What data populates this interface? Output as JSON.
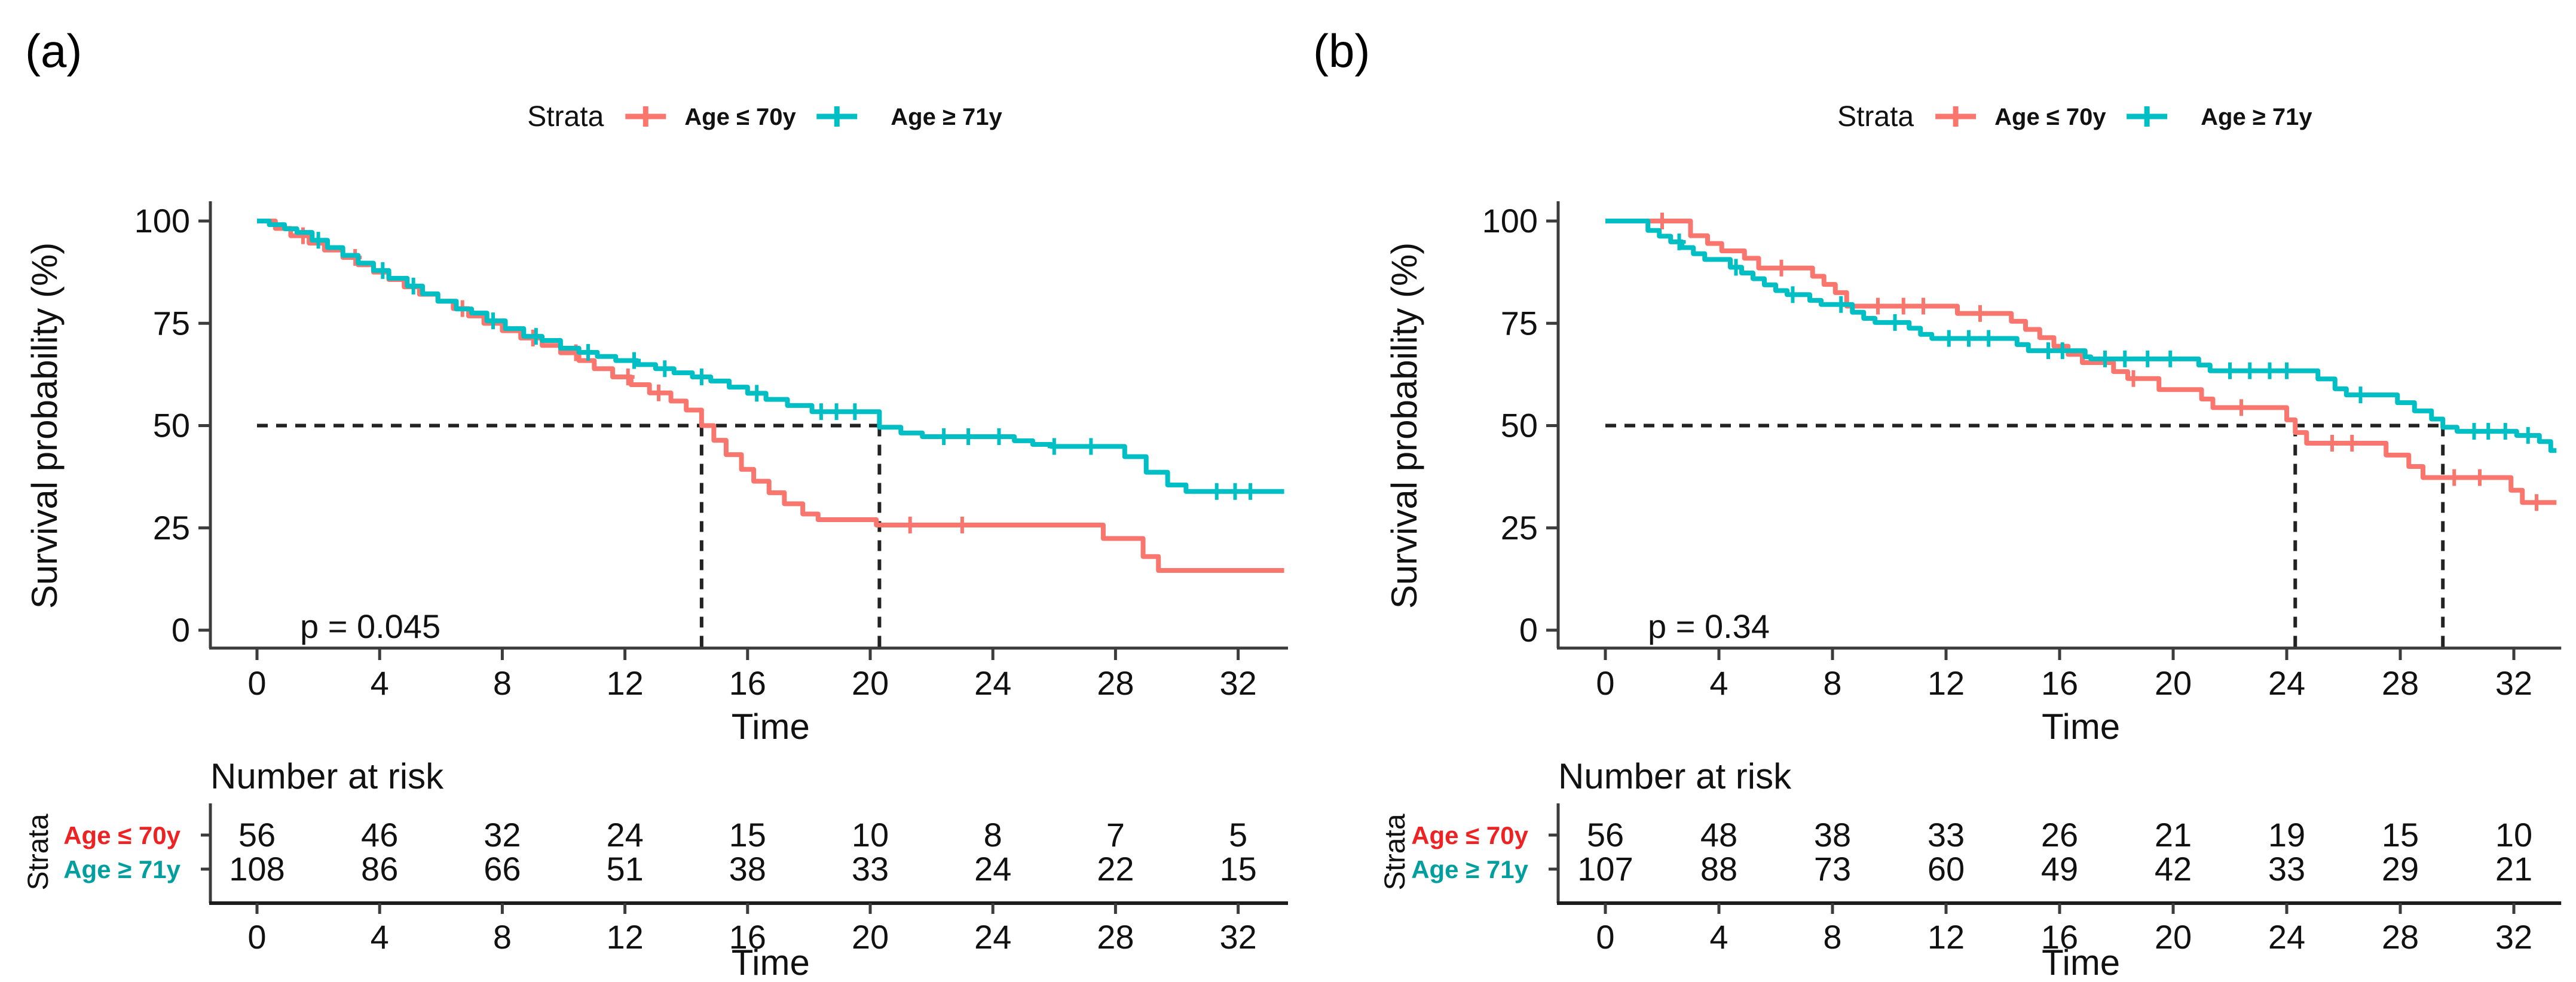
{
  "chart_data": [
    {
      "panel_label": "(a)",
      "type": "line",
      "subtype": "kaplan_meier_step",
      "xlabel": "Time",
      "ylabel": "Survival probability (%)",
      "xlim": [
        0,
        33.5
      ],
      "ylim": [
        0,
        100
      ],
      "xticks": [
        0,
        4,
        8,
        12,
        16,
        20,
        24,
        28,
        32
      ],
      "yticks": [
        100,
        75,
        50,
        25,
        0
      ],
      "grid": false,
      "legend": {
        "title": "Strata",
        "position": "top"
      },
      "p_value_label": "p = 0.045",
      "median_survival": {
        "y_percent": 50,
        "times": [
          14.5,
          20.3
        ]
      },
      "series": [
        {
          "name": "Age ≤ 70y",
          "color": "#F8766D",
          "steps": [
            [
              0,
              100
            ],
            [
              0.6,
              98.2
            ],
            [
              1.1,
              96.4
            ],
            [
              1.7,
              94.6
            ],
            [
              2.2,
              92.9
            ],
            [
              2.8,
              91.1
            ],
            [
              3.3,
              89.3
            ],
            [
              3.8,
              87.5
            ],
            [
              4.3,
              85.7
            ],
            [
              4.8,
              83.9
            ],
            [
              5.3,
              82.1
            ],
            [
              5.9,
              80.4
            ],
            [
              6.4,
              78.6
            ],
            [
              6.9,
              76.8
            ],
            [
              7.4,
              75.0
            ],
            [
              8.0,
              73.2
            ],
            [
              8.6,
              71.4
            ],
            [
              9.3,
              69.6
            ],
            [
              9.9,
              67.8
            ],
            [
              10.5,
              65.9
            ],
            [
              11.0,
              63.9
            ],
            [
              11.6,
              61.9
            ],
            [
              12.2,
              60.0
            ],
            [
              12.8,
              58.0
            ],
            [
              13.5,
              56.0
            ],
            [
              14.0,
              53.8
            ],
            [
              14.5,
              50.0
            ],
            [
              14.9,
              46.4
            ],
            [
              15.3,
              42.9
            ],
            [
              15.8,
              39.3
            ],
            [
              16.2,
              36.4
            ],
            [
              16.7,
              33.6
            ],
            [
              17.2,
              30.9
            ],
            [
              17.8,
              28.4
            ],
            [
              18.3,
              27.0
            ],
            [
              20.2,
              25.7
            ],
            [
              27.6,
              22.4
            ],
            [
              28.9,
              18.0
            ],
            [
              29.4,
              14.6
            ],
            [
              33.5,
              14.6
            ]
          ],
          "censor_times": [
            1.5,
            3.2,
            6.7,
            9.0,
            10.4,
            12.1,
            13.1,
            21.3,
            23.0
          ]
        },
        {
          "name": "Age ≥ 71y",
          "color": "#00BFC4",
          "steps": [
            [
              0,
              100
            ],
            [
              0.4,
              99.1
            ],
            [
              0.9,
              98.1
            ],
            [
              1.3,
              97.2
            ],
            [
              1.8,
              95.3
            ],
            [
              2.3,
              93.5
            ],
            [
              2.8,
              91.6
            ],
            [
              3.3,
              89.7
            ],
            [
              3.8,
              87.9
            ],
            [
              4.3,
              86.0
            ],
            [
              4.9,
              84.1
            ],
            [
              5.4,
              82.2
            ],
            [
              5.9,
              80.4
            ],
            [
              6.5,
              78.5
            ],
            [
              7.0,
              77.5
            ],
            [
              7.5,
              75.6
            ],
            [
              8.1,
              73.7
            ],
            [
              8.7,
              71.8
            ],
            [
              9.3,
              70.8
            ],
            [
              9.9,
              68.9
            ],
            [
              10.5,
              67.9
            ],
            [
              11.1,
              66.9
            ],
            [
              11.7,
              65.9
            ],
            [
              12.4,
              64.9
            ],
            [
              13.0,
              63.9
            ],
            [
              13.6,
              62.9
            ],
            [
              14.2,
              61.9
            ],
            [
              14.8,
              60.9
            ],
            [
              15.4,
              59.4
            ],
            [
              16.0,
              57.9
            ],
            [
              16.6,
              56.4
            ],
            [
              17.3,
              54.9
            ],
            [
              18.1,
              53.4
            ],
            [
              20.3,
              49.6
            ],
            [
              21.0,
              48.2
            ],
            [
              21.7,
              47.3
            ],
            [
              24.7,
              46.3
            ],
            [
              25.3,
              45.4
            ],
            [
              25.9,
              44.9
            ],
            [
              28.3,
              42.4
            ],
            [
              29.0,
              38.6
            ],
            [
              29.7,
              35.5
            ],
            [
              30.3,
              33.9
            ],
            [
              33.5,
              33.9
            ]
          ],
          "censor_times": [
            2.0,
            4.1,
            5.1,
            7.7,
            9.1,
            10.8,
            12.3,
            13.3,
            14.5,
            16.3,
            18.4,
            18.9,
            19.5,
            22.4,
            23.2,
            24.2,
            26.0,
            27.2,
            31.3,
            31.9,
            32.4
          ]
        }
      ],
      "risk_table": {
        "title": "Number at risk",
        "strata_axis_label": "Strata",
        "time_label": "Time",
        "times": [
          0,
          4,
          8,
          12,
          16,
          20,
          24,
          28,
          32
        ],
        "rows": [
          {
            "label": "Age ≤ 70y",
            "color": "#EE2222",
            "values": [
              56,
              46,
              32,
              24,
              15,
              10,
              8,
              7,
              5
            ]
          },
          {
            "label": "Age ≥ 71y",
            "color": "#009E9E",
            "values": [
              108,
              86,
              66,
              51,
              38,
              33,
              24,
              22,
              15
            ]
          }
        ]
      }
    },
    {
      "panel_label": "(b)",
      "type": "line",
      "subtype": "kaplan_meier_step",
      "xlabel": "Time",
      "ylabel": "Survival probability (%)",
      "xlim": [
        0,
        33.5
      ],
      "ylim": [
        0,
        100
      ],
      "xticks": [
        0,
        4,
        8,
        12,
        16,
        20,
        24,
        28,
        32
      ],
      "yticks": [
        100,
        75,
        50,
        25,
        0
      ],
      "grid": false,
      "legend": {
        "title": "Strata",
        "position": "top"
      },
      "p_value_label": "p = 0.34",
      "median_survival": {
        "y_percent": 50,
        "times": [
          24.3,
          29.5
        ]
      },
      "series": [
        {
          "name": "Age ≤ 70y",
          "color": "#F8766D",
          "steps": [
            [
              0,
              100
            ],
            [
              3.0,
              96.4
            ],
            [
              3.6,
              94.5
            ],
            [
              4.1,
              92.7
            ],
            [
              4.9,
              90.9
            ],
            [
              5.4,
              88.5
            ],
            [
              7.3,
              86.5
            ],
            [
              7.7,
              84.5
            ],
            [
              8.1,
              82.5
            ],
            [
              8.5,
              79.2
            ],
            [
              12.4,
              77.4
            ],
            [
              14.3,
              75.5
            ],
            [
              14.8,
              73.5
            ],
            [
              15.3,
              71.5
            ],
            [
              15.8,
              69.4
            ],
            [
              16.3,
              67.4
            ],
            [
              16.8,
              65.4
            ],
            [
              17.9,
              63.2
            ],
            [
              18.4,
              61.5
            ],
            [
              19.5,
              58.8
            ],
            [
              21.0,
              56.5
            ],
            [
              21.4,
              54.4
            ],
            [
              24.0,
              51.4
            ],
            [
              24.3,
              48.3
            ],
            [
              24.7,
              45.7
            ],
            [
              27.5,
              42.8
            ],
            [
              28.3,
              40.0
            ],
            [
              28.8,
              37.3
            ],
            [
              31.9,
              34.2
            ],
            [
              32.3,
              31.2
            ],
            [
              33.5,
              31.2
            ]
          ],
          "censor_times": [
            2.0,
            6.2,
            9.6,
            10.5,
            11.2,
            13.2,
            18.6,
            22.4,
            25.6,
            26.3,
            29.9,
            30.8,
            32.8
          ]
        },
        {
          "name": "Age ≥ 71y",
          "color": "#00BFC4",
          "steps": [
            [
              0,
              100
            ],
            [
              1.5,
              97.7
            ],
            [
              1.9,
              96.3
            ],
            [
              2.3,
              94.9
            ],
            [
              2.7,
              93.5
            ],
            [
              3.1,
              92.0
            ],
            [
              3.5,
              90.6
            ],
            [
              4.4,
              88.7
            ],
            [
              4.8,
              87.3
            ],
            [
              5.2,
              85.9
            ],
            [
              5.6,
              84.4
            ],
            [
              6.0,
              83.0
            ],
            [
              6.4,
              82.0
            ],
            [
              7.2,
              80.6
            ],
            [
              7.6,
              79.6
            ],
            [
              8.7,
              77.7
            ],
            [
              9.1,
              76.2
            ],
            [
              9.5,
              75.2
            ],
            [
              10.7,
              73.8
            ],
            [
              11.1,
              72.3
            ],
            [
              11.5,
              71.3
            ],
            [
              14.5,
              69.8
            ],
            [
              14.9,
              68.3
            ],
            [
              16.9,
              66.8
            ],
            [
              17.1,
              66.3
            ],
            [
              20.9,
              64.8
            ],
            [
              21.3,
              63.4
            ],
            [
              25.1,
              61.4
            ],
            [
              25.7,
              59.0
            ],
            [
              26.1,
              57.5
            ],
            [
              27.9,
              55.6
            ],
            [
              28.5,
              53.6
            ],
            [
              29.1,
              51.6
            ],
            [
              29.5,
              49.6
            ],
            [
              30.0,
              48.6
            ],
            [
              32.1,
              47.6
            ],
            [
              32.9,
              46.1
            ],
            [
              33.3,
              43.9
            ],
            [
              33.5,
              43.9
            ]
          ],
          "censor_times": [
            2.6,
            4.6,
            6.6,
            8.3,
            10.2,
            12.1,
            12.8,
            13.5,
            15.6,
            16.1,
            17.6,
            18.3,
            19.1,
            19.9,
            22.0,
            22.7,
            23.4,
            24.0,
            26.6,
            30.6,
            31.1,
            31.7,
            32.5
          ]
        }
      ],
      "risk_table": {
        "title": "Number at risk",
        "strata_axis_label": "Strata",
        "time_label": "Time",
        "times": [
          0,
          4,
          8,
          12,
          16,
          20,
          24,
          28,
          32
        ],
        "rows": [
          {
            "label": "Age ≤ 70y",
            "color": "#EE2222",
            "values": [
              56,
              48,
              38,
              33,
              26,
              21,
              19,
              15,
              10
            ]
          },
          {
            "label": "Age ≥ 71y",
            "color": "#009E9E",
            "values": [
              107,
              88,
              73,
              60,
              49,
              42,
              33,
              29,
              21
            ]
          }
        ]
      }
    }
  ]
}
